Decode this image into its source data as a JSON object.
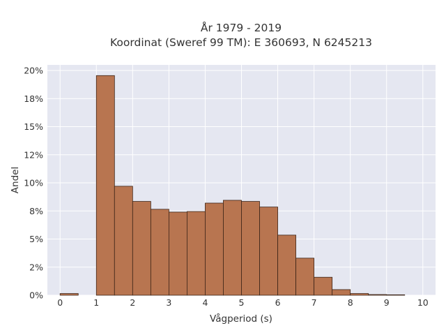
{
  "chart_data": {
    "type": "bar",
    "title": [
      "År 1979 - 2019",
      "Koordinat (Sweref 99 TM): E 360693, N 6245213"
    ],
    "xlabel": "Vågperiod (s)",
    "ylabel": "Andel",
    "xlim": [
      -0.35,
      10.35
    ],
    "ylim": [
      0,
      0.205
    ],
    "x_ticks": [
      0,
      1,
      2,
      3,
      4,
      5,
      6,
      7,
      8,
      9,
      10
    ],
    "y_ticks": [
      0,
      0.025,
      0.05,
      0.075,
      0.1,
      0.125,
      0.15,
      0.175,
      0.2
    ],
    "y_tick_labels": [
      "0%",
      "2%",
      "5%",
      "8%",
      "10%",
      "12%",
      "15%",
      "18%",
      "20%"
    ],
    "bin_width": 0.5,
    "bins": [
      {
        "x0": 0.0,
        "value": 0.0015
      },
      {
        "x0": 1.0,
        "value": 0.1955
      },
      {
        "x0": 1.5,
        "value": 0.097
      },
      {
        "x0": 2.0,
        "value": 0.0835
      },
      {
        "x0": 2.5,
        "value": 0.0765
      },
      {
        "x0": 3.0,
        "value": 0.074
      },
      {
        "x0": 3.5,
        "value": 0.0745
      },
      {
        "x0": 4.0,
        "value": 0.082
      },
      {
        "x0": 4.5,
        "value": 0.0845
      },
      {
        "x0": 5.0,
        "value": 0.0835
      },
      {
        "x0": 5.5,
        "value": 0.0785
      },
      {
        "x0": 6.0,
        "value": 0.0535
      },
      {
        "x0": 6.5,
        "value": 0.033
      },
      {
        "x0": 7.0,
        "value": 0.016
      },
      {
        "x0": 7.5,
        "value": 0.005
      },
      {
        "x0": 8.0,
        "value": 0.0015
      },
      {
        "x0": 8.5,
        "value": 0.0006
      },
      {
        "x0": 9.0,
        "value": 0.0004
      }
    ],
    "grid": true,
    "colors": {
      "bar_fill": "#b87550",
      "bar_edge": "#3b2417",
      "plot_background": "#e5e7f1",
      "grid": "#ffffff"
    }
  }
}
